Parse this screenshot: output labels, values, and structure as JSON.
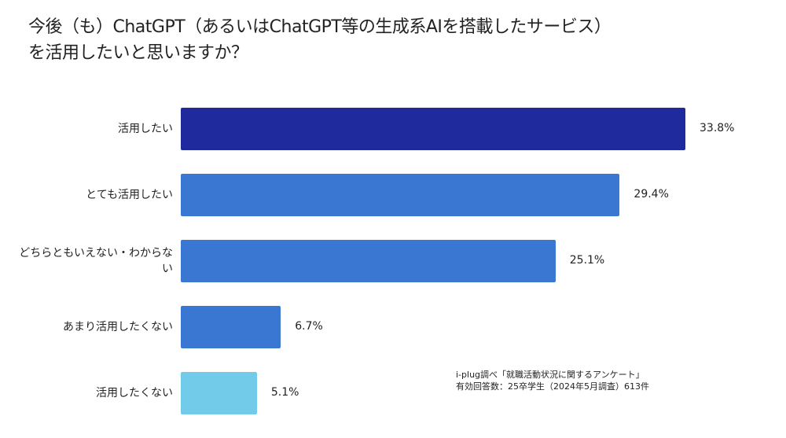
{
  "chart_data": {
    "type": "bar",
    "orientation": "horizontal",
    "title_line1": "今後（も）ChatGPT（あるいはChatGPT等の生成系AIを搭載したサービス）",
    "title_line2": "を活用したいと思いますか？",
    "categories": [
      "活用したい",
      "とても活用したい",
      "どちらともいえない・わからない",
      "あまり活用したくない",
      "活用したくない"
    ],
    "values": [
      33.8,
      29.4,
      25.1,
      6.7,
      5.1
    ],
    "labels": [
      "33.8%",
      "29.4%",
      "25.1%",
      "6.7%",
      "5.1%"
    ],
    "colors": [
      "#1f2a9c",
      "#3a77d2",
      "#3a77d2",
      "#3a77d2",
      "#72cbe8"
    ],
    "xlim": [
      0,
      35
    ],
    "grid": false,
    "source_line1": "i-plug調べ「就職活動状況に関するアンケート」",
    "source_line2": "有効回答数：25卒学生（2024年5月調査）613件"
  }
}
